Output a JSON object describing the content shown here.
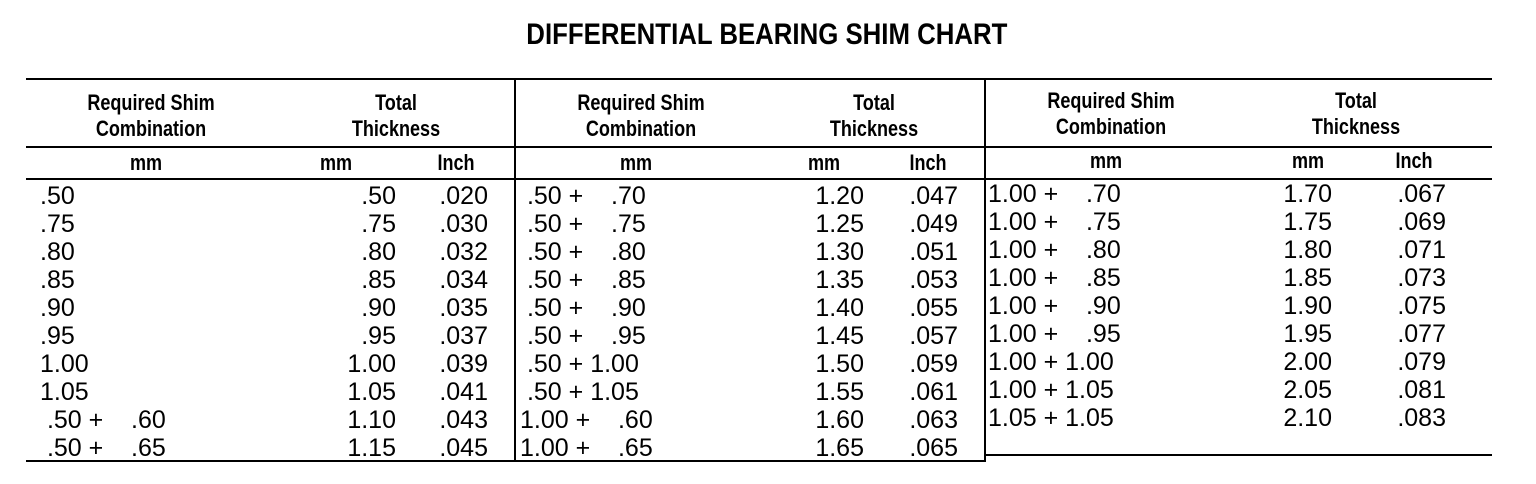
{
  "title": "DIFFERENTIAL BEARING SHIM CHART",
  "headers": {
    "required_shim": "Required Shim Combination",
    "required_shim_line1": "Required Shim",
    "required_shim_line2": "Combination",
    "total": "Total",
    "thickness": "Thickness",
    "unit_mm": "mm",
    "unit_inch": "Inch"
  },
  "panels": [
    {
      "rows": [
        {
          "combo": ".50",
          "mm": ".50",
          "inch": ".020"
        },
        {
          "combo": ".75",
          "mm": ".75",
          "inch": ".030"
        },
        {
          "combo": ".80",
          "mm": ".80",
          "inch": ".032"
        },
        {
          "combo": ".85",
          "mm": ".85",
          "inch": ".034"
        },
        {
          "combo": ".90",
          "mm": ".90",
          "inch": ".035"
        },
        {
          "combo": ".95",
          "mm": ".95",
          "inch": ".037"
        },
        {
          "combo": "1.00",
          "mm": "1.00",
          "inch": ".039"
        },
        {
          "combo": "1.05",
          "mm": "1.05",
          "inch": ".041"
        },
        {
          "combo": " .50 +    .60",
          "mm": "1.10",
          "inch": ".043"
        },
        {
          "combo": " .50 +    .65",
          "mm": "1.15",
          "inch": ".045"
        }
      ]
    },
    {
      "rows": [
        {
          "combo": " .50 +    .70",
          "mm": "1.20",
          "inch": ".047"
        },
        {
          "combo": " .50 +    .75",
          "mm": "1.25",
          "inch": ".049"
        },
        {
          "combo": " .50 +    .80",
          "mm": "1.30",
          "inch": ".051"
        },
        {
          "combo": " .50 +    .85",
          "mm": "1.35",
          "inch": ".053"
        },
        {
          "combo": " .50 +    .90",
          "mm": "1.40",
          "inch": ".055"
        },
        {
          "combo": " .50 +    .95",
          "mm": "1.45",
          "inch": ".057"
        },
        {
          "combo": " .50 + 1.00",
          "mm": "1.50",
          "inch": ".059"
        },
        {
          "combo": " .50 + 1.05",
          "mm": "1.55",
          "inch": ".061"
        },
        {
          "combo": "1.00 +    .60",
          "mm": "1.60",
          "inch": ".063"
        },
        {
          "combo": "1.00 +    .65",
          "mm": "1.65",
          "inch": ".065"
        }
      ]
    },
    {
      "rows": [
        {
          "combo": "1.00 +    .70",
          "mm": "1.70",
          "inch": ".067"
        },
        {
          "combo": "1.00 +    .75",
          "mm": "1.75",
          "inch": ".069"
        },
        {
          "combo": "1.00 +    .80",
          "mm": "1.80",
          "inch": ".071"
        },
        {
          "combo": "1.00 +    .85",
          "mm": "1.85",
          "inch": ".073"
        },
        {
          "combo": "1.00 +    .90",
          "mm": "1.90",
          "inch": ".075"
        },
        {
          "combo": "1.00 +    .95",
          "mm": "1.95",
          "inch": ".077"
        },
        {
          "combo": "1.00 + 1.00",
          "mm": "2.00",
          "inch": ".079"
        },
        {
          "combo": "1.00 + 1.05",
          "mm": "2.05",
          "inch": ".081"
        },
        {
          "combo": "1.05 + 1.05",
          "mm": "2.10",
          "inch": ".083"
        }
      ]
    }
  ]
}
